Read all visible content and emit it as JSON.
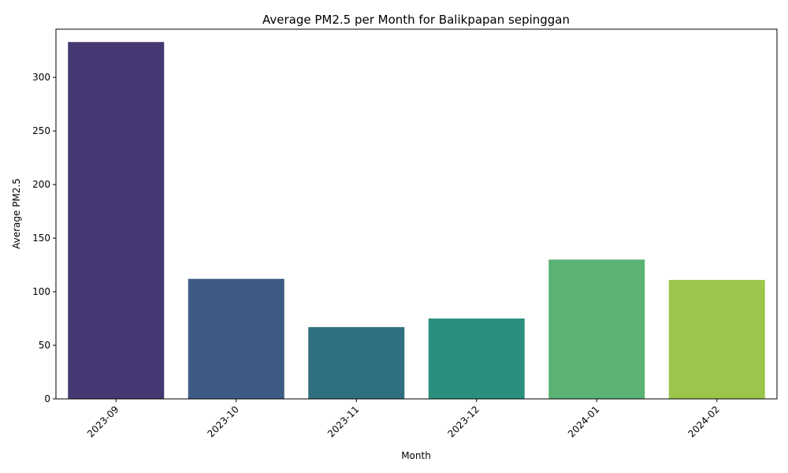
{
  "chart_data": {
    "type": "bar",
    "title": "Average PM2.5 per Month for Balikpapan sepinggan",
    "xlabel": "Month",
    "ylabel": "Average PM2.5",
    "categories": [
      "2023-09",
      "2023-10",
      "2023-11",
      "2023-12",
      "2024-01",
      "2024-02"
    ],
    "values": [
      333,
      112,
      67,
      75,
      130,
      111
    ],
    "ylim": [
      0,
      345
    ],
    "yticks": [
      0,
      50,
      100,
      150,
      200,
      250,
      300
    ],
    "xtick_rotation_deg": 45,
    "grid": false,
    "legend": "none",
    "colors": [
      "#463872",
      "#3e5b84",
      "#306f80",
      "#2b8f7e",
      "#5ab274",
      "#9bc64b"
    ]
  }
}
